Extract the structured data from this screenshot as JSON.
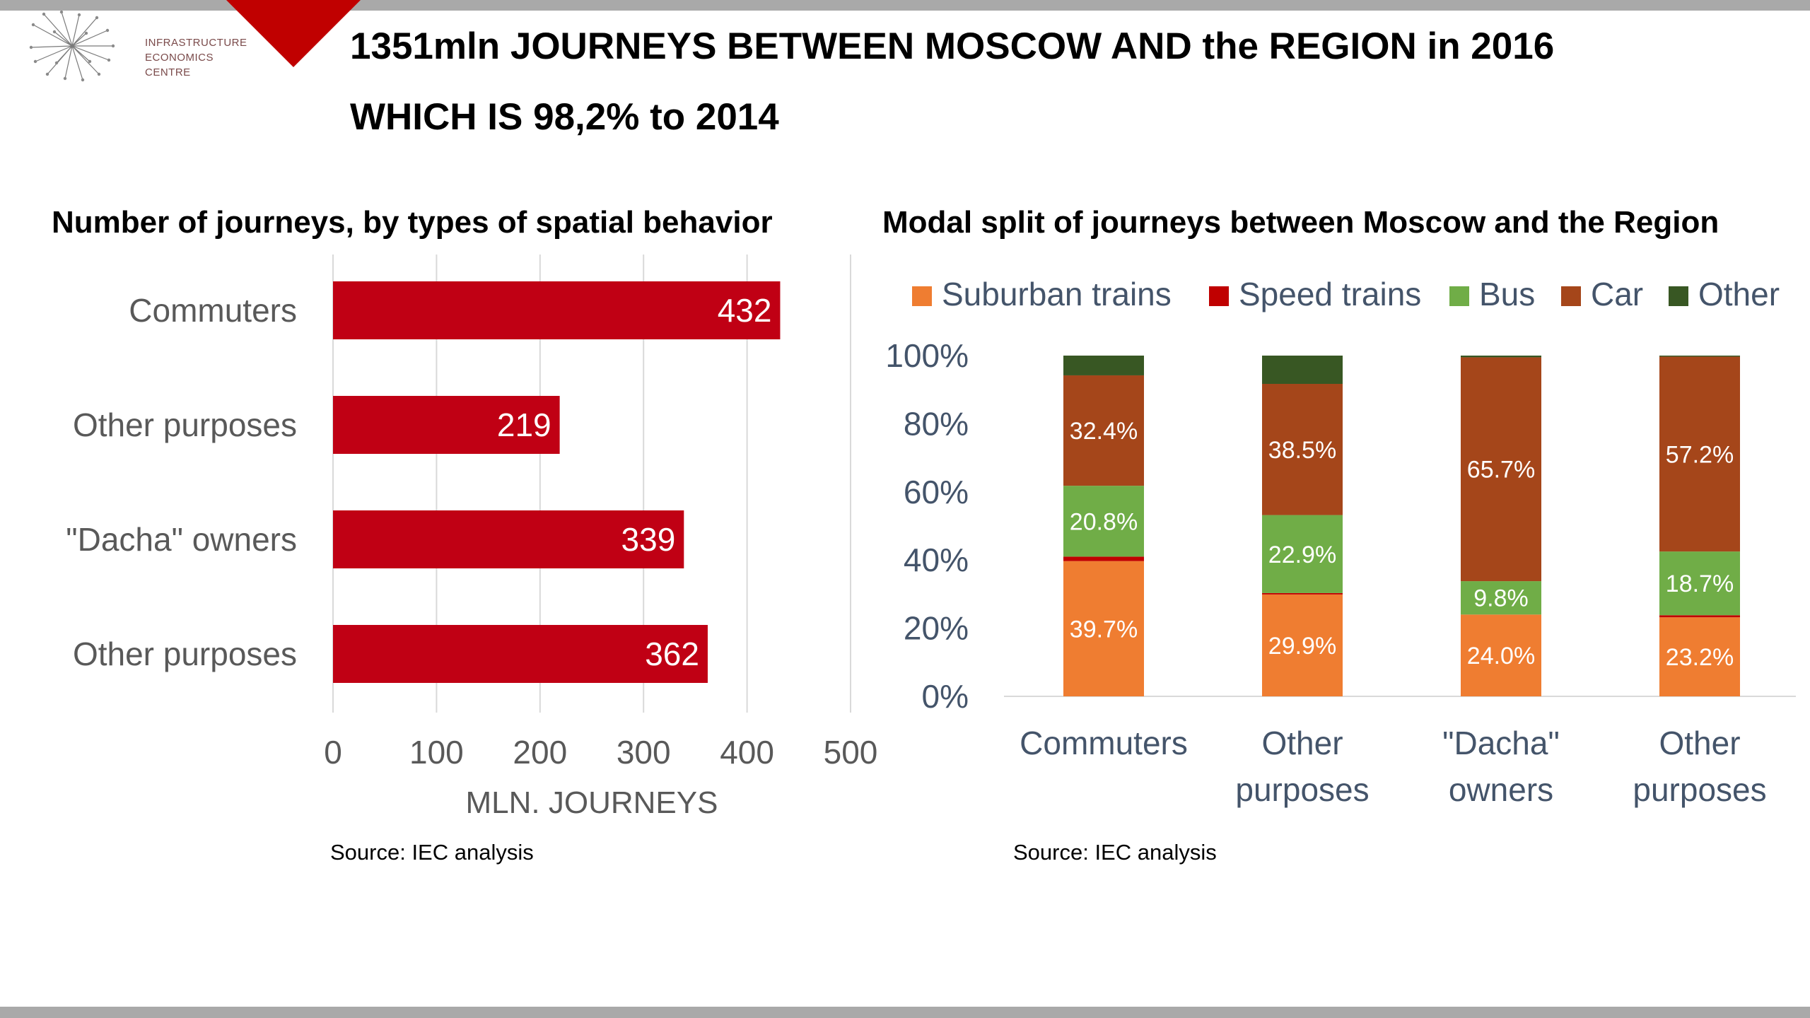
{
  "header": {
    "title_line1": "1351mln JOURNEYS BETWEEN MOSCOW AND the REGION in 2016",
    "title_line2": "WHICH IS 98,2% to 2014",
    "logo_lines": [
      "INFRASTRUCTURE",
      "ECONOMICS",
      "CENTRE"
    ],
    "accent_color": "#c00000"
  },
  "left_panel": {
    "subtitle": "Number of journeys, by types of spatial behavior",
    "source": "Source: IEC analysis"
  },
  "right_panel": {
    "subtitle": "Modal split of journeys between Moscow and the Region",
    "source": "Source: IEC analysis"
  },
  "chart_data": [
    {
      "type": "bar",
      "orientation": "horizontal",
      "categories": [
        "Commuters",
        "Other purposes",
        "\"Dacha\" owners",
        "Other  purposes"
      ],
      "values": [
        432,
        219,
        339,
        362
      ],
      "value_labels": [
        "432",
        "219",
        "339",
        "362"
      ],
      "xlabel": "MLN. JOURNEYS",
      "xlim": [
        0,
        500
      ],
      "xticks": [
        0,
        100,
        200,
        300,
        400,
        500
      ],
      "grid": true,
      "color": "#c00014"
    },
    {
      "type": "bar",
      "stacked": true,
      "categories": [
        [
          "Commuters"
        ],
        [
          "Other",
          "purposes"
        ],
        [
          "\"Dacha\"",
          "owners"
        ],
        [
          "Other",
          "purposes"
        ]
      ],
      "ylim": [
        0,
        100
      ],
      "yticks": [
        "0%",
        "20%",
        "40%",
        "60%",
        "80%",
        "100%"
      ],
      "legend_position": "top",
      "series": [
        {
          "name": "Suburban trains",
          "color": "#ef7d31",
          "values": [
            39.7,
            29.9,
            24.0,
            23.2
          ],
          "labels": [
            "39.7%",
            "29.9%",
            "24.0%",
            "23.2%"
          ]
        },
        {
          "name": "Speed trains",
          "color": "#c00000",
          "values": [
            1.3,
            0.4,
            0.0,
            0.6
          ],
          "labels": [
            "",
            "",
            "",
            ""
          ]
        },
        {
          "name": "Bus",
          "color": "#70ad47",
          "values": [
            20.8,
            22.9,
            9.8,
            18.7
          ],
          "labels": [
            "20.8%",
            "22.9%",
            "9.8%",
            "18.7%"
          ]
        },
        {
          "name": "Car",
          "color": "#a5461a",
          "values": [
            32.4,
            38.5,
            65.7,
            57.2
          ],
          "labels": [
            "32.4%",
            "38.5%",
            "65.7%",
            "57.2%"
          ]
        },
        {
          "name": "Other",
          "color": "#385723",
          "values": [
            5.8,
            8.3,
            0.5,
            0.3
          ],
          "labels": [
            "",
            "",
            "",
            ""
          ]
        }
      ]
    }
  ]
}
